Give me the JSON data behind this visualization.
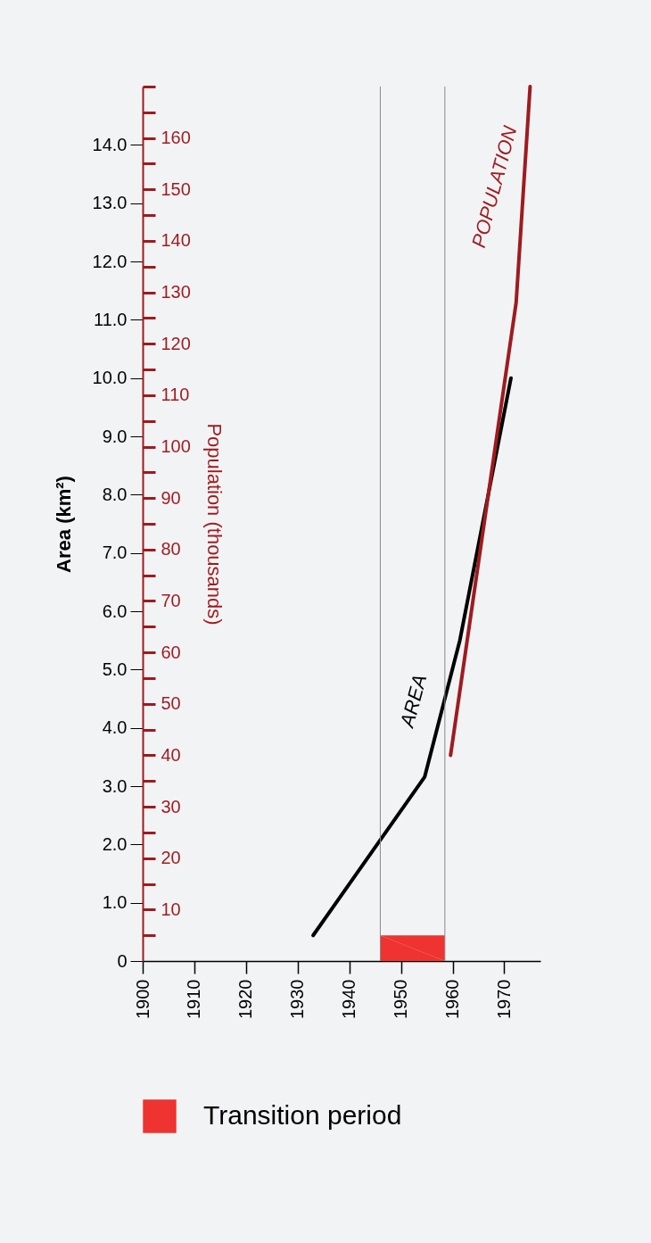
{
  "chart_data": {
    "type": "line",
    "ylabel": "Area (km²)",
    "y2label": "Population (thousands)",
    "xlim": [
      1900,
      1977
    ],
    "xticks": [
      1900,
      1910,
      1920,
      1930,
      1940,
      1950,
      1960,
      1970
    ],
    "ylim": [
      0,
      15
    ],
    "yticks": [
      0,
      {
        "value": 1,
        "label": "1.0"
      },
      {
        "value": 2,
        "label": "2.0"
      },
      {
        "value": 3,
        "label": "3.0"
      },
      {
        "value": 4,
        "label": "4.0"
      },
      {
        "value": 5,
        "label": "5.0"
      },
      {
        "value": 6,
        "label": "6.0"
      },
      {
        "value": 7,
        "label": "7.0"
      },
      {
        "value": 8,
        "label": "8.0"
      },
      {
        "value": 9,
        "label": "9.0"
      },
      {
        "value": 10,
        "label": "10.0"
      },
      {
        "value": 11,
        "label": "11.0"
      },
      {
        "value": 12,
        "label": "12.0"
      },
      {
        "value": 13,
        "label": "13.0"
      },
      {
        "value": 14,
        "label": "14.0"
      }
    ],
    "y2lim": [
      0,
      170
    ],
    "y2ticks": [
      {
        "value": 5,
        "label": null
      },
      10,
      {
        "value": 15,
        "label": null
      },
      20,
      {
        "value": 25,
        "label": null
      },
      30,
      {
        "value": 35,
        "label": null
      },
      40,
      {
        "value": 45,
        "label": null
      },
      50,
      {
        "value": 55,
        "label": null
      },
      60,
      {
        "value": 65,
        "label": null
      },
      70,
      {
        "value": 75,
        "label": null
      },
      80,
      {
        "value": 85,
        "label": null
      },
      90,
      {
        "value": 95,
        "label": null
      },
      100,
      {
        "value": 105,
        "label": null
      },
      110,
      {
        "value": 115,
        "label": null
      },
      120,
      {
        "value": 125,
        "label": null
      },
      130,
      {
        "value": 135,
        "label": null
      },
      140,
      {
        "value": 145,
        "label": null
      },
      150,
      {
        "value": 155,
        "label": null
      },
      160,
      {
        "value": 165,
        "label": null
      },
      {
        "value": 170,
        "label": null
      }
    ],
    "series": [
      {
        "color": "#000000",
        "x": [
          1933,
          1954.6,
          1961.4,
          1971.3
        ],
        "values": [
          0.44,
          3.16,
          5.5,
          10.0
        ]
      },
      {
        "color": "#9e1b1f",
        "axis": "y2",
        "x": [
          1959.6,
          1972.3,
          1975
        ],
        "values": [
          40,
          128,
          170
        ]
      },
      {
        "type": "area",
        "name": "Transition period",
        "color": "#ee3330",
        "x": [
          1946,
          1958.5
        ],
        "values": [
          0.44,
          0.44
        ]
      }
    ],
    "ref_lines": [
      {
        "axis": "x",
        "value": 1946,
        "color": "#888888"
      },
      {
        "axis": "x",
        "value": 1958.5,
        "color": "#888888"
      }
    ],
    "annotations": [
      "AREA",
      "POPULATION"
    ],
    "legend": "bottom",
    "grid": false
  }
}
